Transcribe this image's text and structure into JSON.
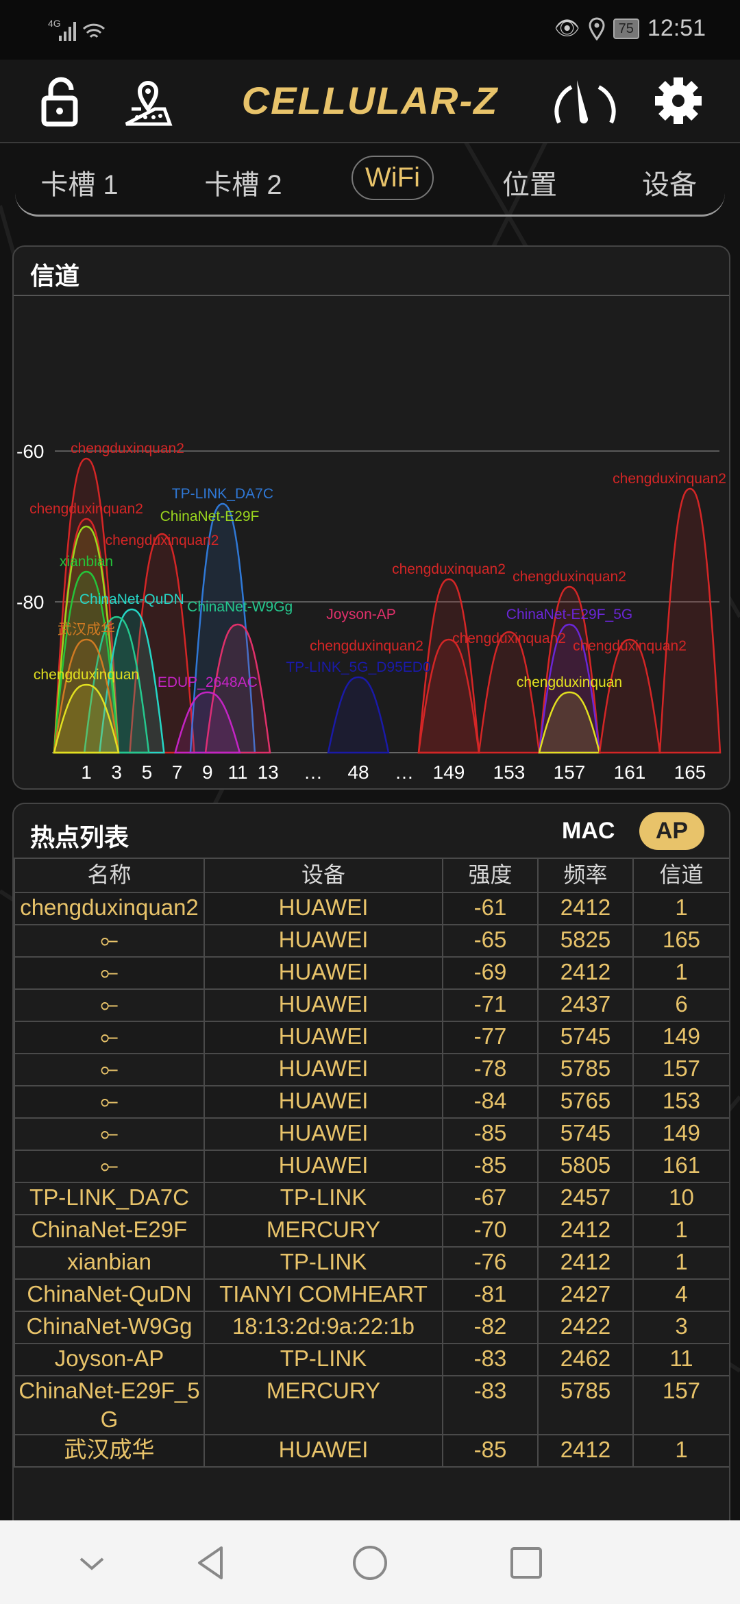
{
  "status_bar": {
    "network": "4G",
    "battery": "75",
    "time": "12:51"
  },
  "header": {
    "logo": "CELLULAR-Z",
    "icons": [
      "lock-open-icon",
      "map-pin-icon",
      "speedometer-icon",
      "gear-icon"
    ]
  },
  "tabs": [
    {
      "label": "卡槽 1"
    },
    {
      "label": "卡槽 2"
    },
    {
      "label": "WiFi",
      "active": true
    },
    {
      "label": "位置"
    },
    {
      "label": "设备"
    }
  ],
  "channel_card": {
    "title": "信道"
  },
  "chart_data": {
    "type": "area",
    "ylim": [
      -100,
      -40
    ],
    "y_ticks": [
      "-60",
      "-80"
    ],
    "grid": "horizontal",
    "x_ticks": [
      "1",
      "3",
      "5",
      "7",
      "9",
      "11",
      "13",
      "…",
      "48",
      "…",
      "149",
      "153",
      "157",
      "161",
      "165"
    ],
    "series": [
      {
        "name": "chengduxinquan2",
        "channel": 1,
        "rssi": -61,
        "color": "#d42626"
      },
      {
        "name": "chengduxinquan2",
        "channel": 1,
        "rssi": -69,
        "color": "#d42626"
      },
      {
        "name": "ChinaNet-E29F",
        "channel": 1,
        "rssi": -70,
        "color": "#9ad61e"
      },
      {
        "name": "chengduxinquan2",
        "channel": 6,
        "rssi": -71,
        "color": "#d42626"
      },
      {
        "name": "TP-LINK_DA7C",
        "channel": 10,
        "rssi": -67,
        "color": "#2f78d6"
      },
      {
        "name": "xianbian",
        "channel": 1,
        "rssi": -76,
        "color": "#25c43a"
      },
      {
        "name": "ChinaNet-QuDN",
        "channel": 4,
        "rssi": -81,
        "color": "#25d6c6"
      },
      {
        "name": "ChinaNet-W9Gg",
        "channel": 3,
        "rssi": -82,
        "color": "#25c88e"
      },
      {
        "name": "武汉成华",
        "channel": 1,
        "rssi": -85,
        "color": "#d07a22"
      },
      {
        "name": "Joyson-AP",
        "channel": 11,
        "rssi": -83,
        "color": "#e0306a"
      },
      {
        "name": "chengduxinquan",
        "channel": 1,
        "rssi": -91,
        "color": "#e2e020"
      },
      {
        "name": "EDUP_2648AC",
        "channel": 9,
        "rssi": -92,
        "color": "#c424c4"
      },
      {
        "name": "TP-LINK_5G_D95ED0",
        "channel": 48,
        "rssi": -90,
        "color": "#1a1aa8"
      },
      {
        "name": "chengduxinquan2",
        "channel": 149,
        "rssi": -77,
        "color": "#d42626"
      },
      {
        "name": "chengduxinquan2",
        "channel": 149,
        "rssi": -85,
        "color": "#d42626"
      },
      {
        "name": "chengduxinquan2",
        "channel": 153,
        "rssi": -84,
        "color": "#d42626"
      },
      {
        "name": "chengduxinquan2",
        "channel": 157,
        "rssi": -78,
        "color": "#d42626"
      },
      {
        "name": "ChinaNet-E29F_5G",
        "channel": 157,
        "rssi": -83,
        "color": "#6a26d6"
      },
      {
        "name": "chengduxinquan",
        "channel": 157,
        "rssi": -92,
        "color": "#e2e020"
      },
      {
        "name": "chengduxinquan2",
        "channel": 161,
        "rssi": -85,
        "color": "#d42626"
      },
      {
        "name": "chengduxinquan2",
        "channel": 165,
        "rssi": -65,
        "color": "#d42626"
      }
    ]
  },
  "hotspots": {
    "title": "热点列表",
    "toggle": {
      "mac": "MAC",
      "ap": "AP",
      "selected": "AP"
    },
    "columns": [
      "名称",
      "设备",
      "强度",
      "频率",
      "信道"
    ],
    "rows": [
      [
        "chengduxinquan2",
        "HUAWEI",
        "-61",
        "2412",
        "1"
      ],
      [
        "⟜",
        "HUAWEI",
        "-65",
        "5825",
        "165"
      ],
      [
        "⟜",
        "HUAWEI",
        "-69",
        "2412",
        "1"
      ],
      [
        "⟜",
        "HUAWEI",
        "-71",
        "2437",
        "6"
      ],
      [
        "⟜",
        "HUAWEI",
        "-77",
        "5745",
        "149"
      ],
      [
        "⟜",
        "HUAWEI",
        "-78",
        "5785",
        "157"
      ],
      [
        "⟜",
        "HUAWEI",
        "-84",
        "5765",
        "153"
      ],
      [
        "⟜",
        "HUAWEI",
        "-85",
        "5745",
        "149"
      ],
      [
        "⟜",
        "HUAWEI",
        "-85",
        "5805",
        "161"
      ],
      [
        "TP-LINK_DA7C",
        "TP-LINK",
        "-67",
        "2457",
        "10"
      ],
      [
        "ChinaNet-E29F",
        "MERCURY",
        "-70",
        "2412",
        "1"
      ],
      [
        "xianbian",
        "TP-LINK",
        "-76",
        "2412",
        "1"
      ],
      [
        "ChinaNet-QuDN",
        "TIANYI COMHEART",
        "-81",
        "2427",
        "4"
      ],
      [
        "ChinaNet-W9Gg",
        "18:13:2d:9a:22:1b",
        "-82",
        "2422",
        "3"
      ],
      [
        "Joyson-AP",
        "TP-LINK",
        "-83",
        "2462",
        "11"
      ],
      [
        "ChinaNet-E29F_5G",
        "MERCURY",
        "-83",
        "5785",
        "157"
      ],
      [
        "武汉成华",
        "HUAWEI",
        "-85",
        "2412",
        "1"
      ]
    ]
  },
  "accent_color": "#e8c36a",
  "navbar": {
    "icons": [
      "chevron-down-icon",
      "back-icon",
      "home-icon",
      "recents-icon"
    ]
  }
}
